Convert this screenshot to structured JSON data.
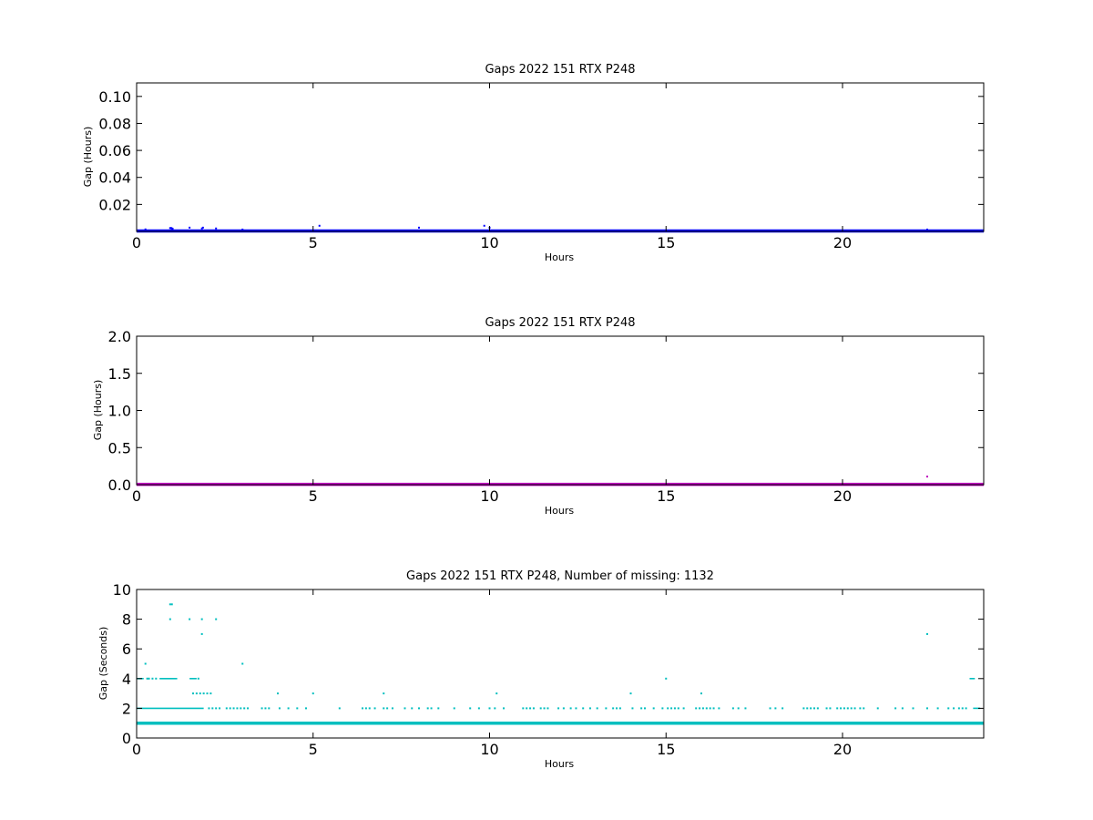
{
  "chart_data": [
    {
      "type": "scatter",
      "title": "Gaps 2022 151 RTX  P248",
      "xlabel": "Hours",
      "ylabel": "Gap (Hours)",
      "xlim": [
        0,
        24
      ],
      "ylim": [
        0,
        0.11
      ],
      "xticks": [
        "0",
        "5",
        "10",
        "15",
        "20"
      ],
      "yticks": [
        "0.02",
        "0.04",
        "0.06",
        "0.08",
        "0.10"
      ],
      "ytick_values": [
        0.02,
        0.04,
        0.06,
        0.08,
        0.1
      ],
      "color": "#0000ff",
      "baseline": {
        "value": 0.0003,
        "x_range": [
          0,
          24
        ]
      },
      "points": [
        [
          0.25,
          0.0015
        ],
        [
          0.95,
          0.0025
        ],
        [
          0.98,
          0.0025
        ],
        [
          1.0,
          0.0022
        ],
        [
          1.02,
          0.002
        ],
        [
          1.5,
          0.0028
        ],
        [
          1.85,
          0.0022
        ],
        [
          1.88,
          0.0028
        ],
        [
          2.25,
          0.0022
        ],
        [
          3.0,
          0.0014
        ],
        [
          5.18,
          0.0042
        ],
        [
          8.0,
          0.0028
        ],
        [
          9.85,
          0.0042
        ],
        [
          10.0,
          0.0028
        ],
        [
          22.4,
          0.0014
        ]
      ]
    },
    {
      "type": "scatter",
      "title": "Gaps 2022 151 RTX  P248",
      "xlabel": "Hours",
      "ylabel": "Gap (Hours)",
      "xlim": [
        0,
        24
      ],
      "ylim": [
        0,
        2.0
      ],
      "xticks": [
        "0",
        "5",
        "10",
        "15",
        "20"
      ],
      "yticks": [
        "0.0",
        "0.5",
        "1.0",
        "1.5",
        "2.0"
      ],
      "ytick_values": [
        0.0,
        0.5,
        1.0,
        1.5,
        2.0
      ],
      "color": "#bf00bf",
      "baseline": {
        "value": 0.005,
        "x_range": [
          0,
          24
        ]
      },
      "points": [
        [
          22.4,
          0.11
        ]
      ]
    },
    {
      "type": "scatter",
      "title": "Gaps 2022 151 RTX  P248, Number of missing: 1132",
      "xlabel": "Hours",
      "ylabel": "Gap (Seconds)",
      "xlim": [
        0,
        24
      ],
      "ylim": [
        0,
        10
      ],
      "xticks": [
        "0",
        "5",
        "10",
        "15",
        "20"
      ],
      "yticks": [
        "0",
        "2",
        "4",
        "6",
        "8",
        "10"
      ],
      "ytick_values": [
        0,
        2,
        4,
        6,
        8,
        10
      ],
      "color": "#00bfbf",
      "baseline": {
        "value": 1,
        "x_range": [
          0,
          24
        ]
      },
      "segments": [
        {
          "y": 2,
          "x_range": [
            0.0,
            1.9
          ]
        },
        {
          "y": 4,
          "x_range": [
            0.0,
            0.2
          ]
        },
        {
          "y": 4,
          "x_range": [
            0.65,
            1.15
          ]
        },
        {
          "y": 4,
          "x_range": [
            1.5,
            1.7
          ]
        },
        {
          "y": 4,
          "x_range": [
            23.6,
            23.75
          ]
        },
        {
          "y": 2,
          "x_range": [
            23.7,
            23.9
          ]
        }
      ],
      "points": [
        [
          0.25,
          5
        ],
        [
          0.3,
          4
        ],
        [
          0.35,
          4
        ],
        [
          0.45,
          4
        ],
        [
          0.55,
          4
        ],
        [
          1.75,
          4
        ],
        [
          0.95,
          9
        ],
        [
          1.0,
          9
        ],
        [
          0.95,
          8
        ],
        [
          1.5,
          8
        ],
        [
          1.85,
          8
        ],
        [
          2.25,
          8
        ],
        [
          1.85,
          7
        ],
        [
          3.0,
          5
        ],
        [
          1.6,
          3
        ],
        [
          1.7,
          3
        ],
        [
          1.8,
          3
        ],
        [
          1.9,
          3
        ],
        [
          2.0,
          3
        ],
        [
          2.1,
          3
        ],
        [
          4.0,
          3
        ],
        [
          5.0,
          3
        ],
        [
          7.0,
          3
        ],
        [
          10.2,
          3
        ],
        [
          14.0,
          3
        ],
        [
          16.0,
          3
        ],
        [
          15.0,
          4
        ],
        [
          22.4,
          7
        ],
        [
          2.05,
          2
        ],
        [
          2.15,
          2
        ],
        [
          2.25,
          2
        ],
        [
          2.35,
          2
        ],
        [
          2.55,
          2
        ],
        [
          2.65,
          2
        ],
        [
          2.75,
          2
        ],
        [
          2.85,
          2
        ],
        [
          2.95,
          2
        ],
        [
          3.05,
          2
        ],
        [
          3.15,
          2
        ],
        [
          3.55,
          2
        ],
        [
          3.65,
          2
        ],
        [
          3.75,
          2
        ],
        [
          4.05,
          2
        ],
        [
          4.3,
          2
        ],
        [
          4.55,
          2
        ],
        [
          4.8,
          2
        ],
        [
          5.75,
          2
        ],
        [
          6.4,
          2
        ],
        [
          6.5,
          2
        ],
        [
          6.6,
          2
        ],
        [
          6.75,
          2
        ],
        [
          7.0,
          2
        ],
        [
          7.1,
          2
        ],
        [
          7.25,
          2
        ],
        [
          7.6,
          2
        ],
        [
          7.8,
          2
        ],
        [
          8.0,
          2
        ],
        [
          8.25,
          2
        ],
        [
          8.35,
          2
        ],
        [
          8.55,
          2
        ],
        [
          9.0,
          2
        ],
        [
          9.45,
          2
        ],
        [
          9.7,
          2
        ],
        [
          10.0,
          2
        ],
        [
          10.15,
          2
        ],
        [
          10.4,
          2
        ],
        [
          10.95,
          2
        ],
        [
          11.05,
          2
        ],
        [
          11.15,
          2
        ],
        [
          11.25,
          2
        ],
        [
          11.45,
          2
        ],
        [
          11.55,
          2
        ],
        [
          11.65,
          2
        ],
        [
          11.95,
          2
        ],
        [
          12.1,
          2
        ],
        [
          12.3,
          2
        ],
        [
          12.45,
          2
        ],
        [
          12.65,
          2
        ],
        [
          12.85,
          2
        ],
        [
          13.05,
          2
        ],
        [
          13.3,
          2
        ],
        [
          13.5,
          2
        ],
        [
          13.6,
          2
        ],
        [
          13.7,
          2
        ],
        [
          14.05,
          2
        ],
        [
          14.3,
          2
        ],
        [
          14.4,
          2
        ],
        [
          14.65,
          2
        ],
        [
          14.9,
          2
        ],
        [
          15.05,
          2
        ],
        [
          15.15,
          2
        ],
        [
          15.25,
          2
        ],
        [
          15.35,
          2
        ],
        [
          15.5,
          2
        ],
        [
          15.85,
          2
        ],
        [
          15.95,
          2
        ],
        [
          16.05,
          2
        ],
        [
          16.15,
          2
        ],
        [
          16.25,
          2
        ],
        [
          16.35,
          2
        ],
        [
          16.5,
          2
        ],
        [
          16.9,
          2
        ],
        [
          17.05,
          2
        ],
        [
          17.25,
          2
        ],
        [
          17.95,
          2
        ],
        [
          18.1,
          2
        ],
        [
          18.3,
          2
        ],
        [
          18.9,
          2
        ],
        [
          19.0,
          2
        ],
        [
          19.1,
          2
        ],
        [
          19.2,
          2
        ],
        [
          19.3,
          2
        ],
        [
          19.55,
          2
        ],
        [
          19.65,
          2
        ],
        [
          19.85,
          2
        ],
        [
          19.95,
          2
        ],
        [
          20.05,
          2
        ],
        [
          20.15,
          2
        ],
        [
          20.25,
          2
        ],
        [
          20.35,
          2
        ],
        [
          20.5,
          2
        ],
        [
          20.6,
          2
        ],
        [
          21.0,
          2
        ],
        [
          21.5,
          2
        ],
        [
          21.7,
          2
        ],
        [
          22.0,
          2
        ],
        [
          22.4,
          2
        ],
        [
          22.7,
          2
        ],
        [
          23.0,
          2
        ],
        [
          23.15,
          2
        ],
        [
          23.3,
          2
        ],
        [
          23.4,
          2
        ],
        [
          23.5,
          2
        ]
      ]
    }
  ]
}
